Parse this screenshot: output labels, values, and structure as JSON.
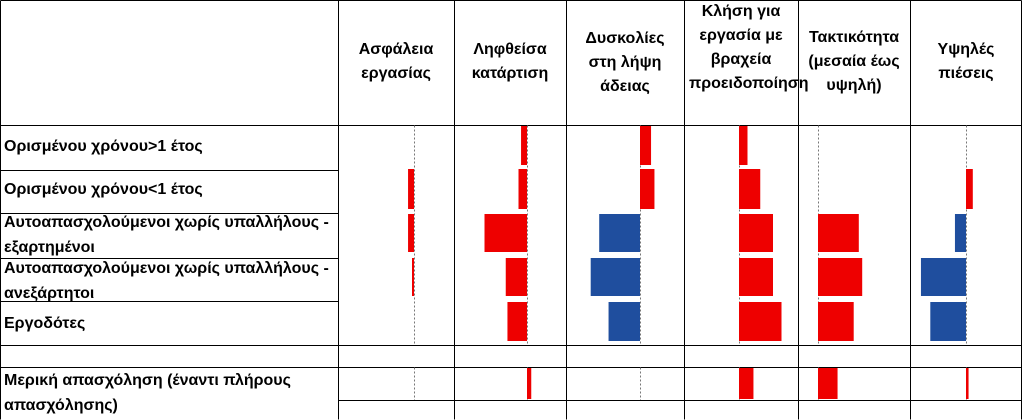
{
  "chart_data": {
    "type": "bar",
    "title": "",
    "columns": [
      "Ασφάλεια εργασίας",
      "Ληφθείσα κατάρτιση",
      "Δυσκολίες στη λήψη άδειας",
      "Κλήση για εργασία με βραχεία προειδοποίηση",
      "Τακτικότητα (μεσαία έως υψηλή)",
      "Υψηλές πιέσεις"
    ],
    "rows": [
      {
        "label": "Ορισμένου χρόνου>1 έτος",
        "values": [
          0,
          -0.07,
          0.13,
          0.1,
          0,
          0
        ]
      },
      {
        "label": "Ορισμένου χρόνου<1 έτος",
        "values": [
          -0.07,
          -0.1,
          0.17,
          0.25,
          0,
          0.08
        ]
      },
      {
        "label": "Αυτοαπασχολούμενοι χωρίς υπαλλήλους - εξαρτημένοι",
        "values": [
          -0.07,
          -0.5,
          -0.48,
          0.4,
          0.48,
          -0.13
        ]
      },
      {
        "label": "Αυτοαπασχολούμενοι χωρίς υπαλλήλους - ανεξάρτητοι",
        "values": [
          -0.01,
          -0.25,
          -0.58,
          0.4,
          0.52,
          -0.53
        ]
      },
      {
        "label": "Εργοδότες",
        "values": [
          0,
          -0.23,
          -0.37,
          0.5,
          0.42,
          -0.42
        ]
      },
      {
        "label": "",
        "values": [
          0,
          0,
          0,
          0,
          0,
          0
        ]
      },
      {
        "label": "Μερική απασχόληση (έναντι πλήρους απασχόλησης)",
        "values": [
          0,
          0.05,
          0,
          0.17,
          0.23,
          0.03
        ]
      }
    ],
    "positive_color": "#ee0000",
    "negative_color": "#1f4e9e",
    "legend": "none",
    "grid": true
  }
}
